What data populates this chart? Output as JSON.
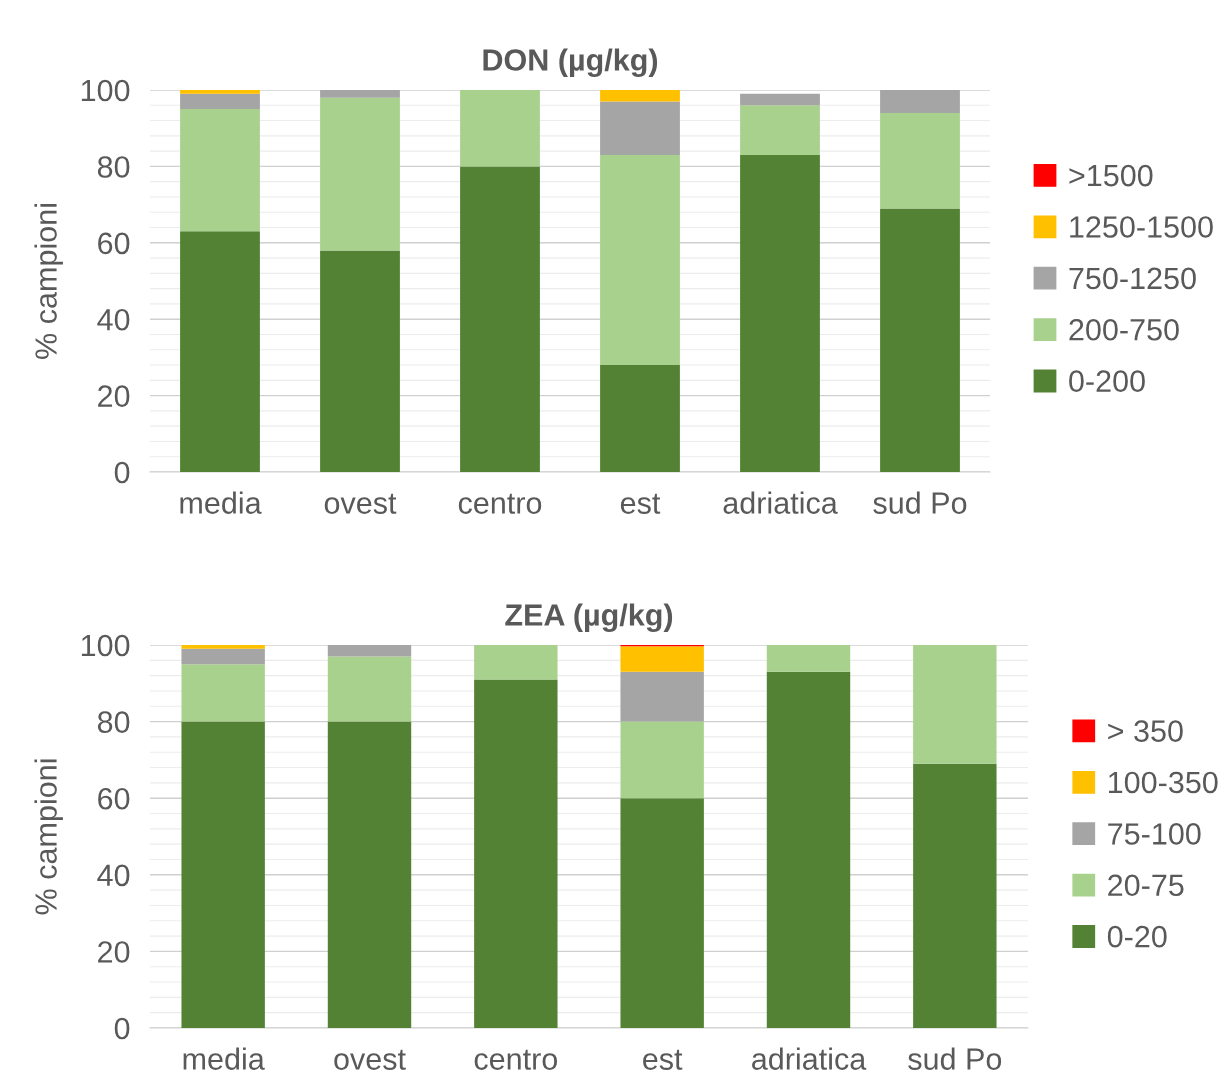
{
  "chart_data": [
    {
      "type": "bar",
      "title": "DON (µg/kg)",
      "ylabel": "% campioni",
      "categories": [
        "media",
        "ovest",
        "centro",
        "est",
        "adriatica",
        "sud Po"
      ],
      "stacked": true,
      "ylim": [
        0,
        100
      ],
      "yticks": [
        0,
        20,
        40,
        60,
        80,
        100
      ],
      "grid": "y",
      "legend": "right",
      "series": [
        {
          "name": "0-200",
          "color": "#548235",
          "values": [
            63,
            58,
            80,
            28,
            83,
            69
          ]
        },
        {
          "name": "200-750",
          "color": "#a9d18e",
          "values": [
            32,
            40,
            20,
            55,
            13,
            25
          ]
        },
        {
          "name": "750-1250",
          "color": "#a5a5a5",
          "values": [
            4,
            2,
            0,
            14,
            3,
            6
          ]
        },
        {
          "name": "1250-1500",
          "color": "#ffc000",
          "values": [
            1,
            0,
            0,
            3,
            0,
            0
          ]
        },
        {
          "name": ">1500",
          "color": "#ff0000",
          "values": [
            0,
            0,
            0,
            0,
            0,
            0
          ]
        }
      ]
    },
    {
      "type": "bar",
      "title": "ZEA (µg/kg)",
      "ylabel": "% campioni",
      "categories": [
        "media",
        "ovest",
        "centro",
        "est",
        "adriatica",
        "sud Po"
      ],
      "stacked": true,
      "ylim": [
        0,
        100
      ],
      "yticks": [
        0,
        20,
        40,
        60,
        80,
        100
      ],
      "grid": "y",
      "legend": "right",
      "series": [
        {
          "name": "0-20",
          "color": "#548235",
          "values": [
            80,
            80,
            91,
            60,
            93,
            69
          ]
        },
        {
          "name": "20-75",
          "color": "#a9d18e",
          "values": [
            15,
            17,
            9,
            20,
            7,
            31
          ]
        },
        {
          "name": "75-100",
          "color": "#a5a5a5",
          "values": [
            4,
            3,
            0,
            13,
            0,
            0
          ]
        },
        {
          "name": "100-350",
          "color": "#ffc000",
          "values": [
            1,
            0,
            0,
            6.7,
            0,
            0
          ]
        },
        {
          "name": "> 350",
          "color": "#ff0000",
          "values": [
            0,
            0,
            0,
            0.3,
            0,
            0
          ]
        }
      ]
    }
  ]
}
